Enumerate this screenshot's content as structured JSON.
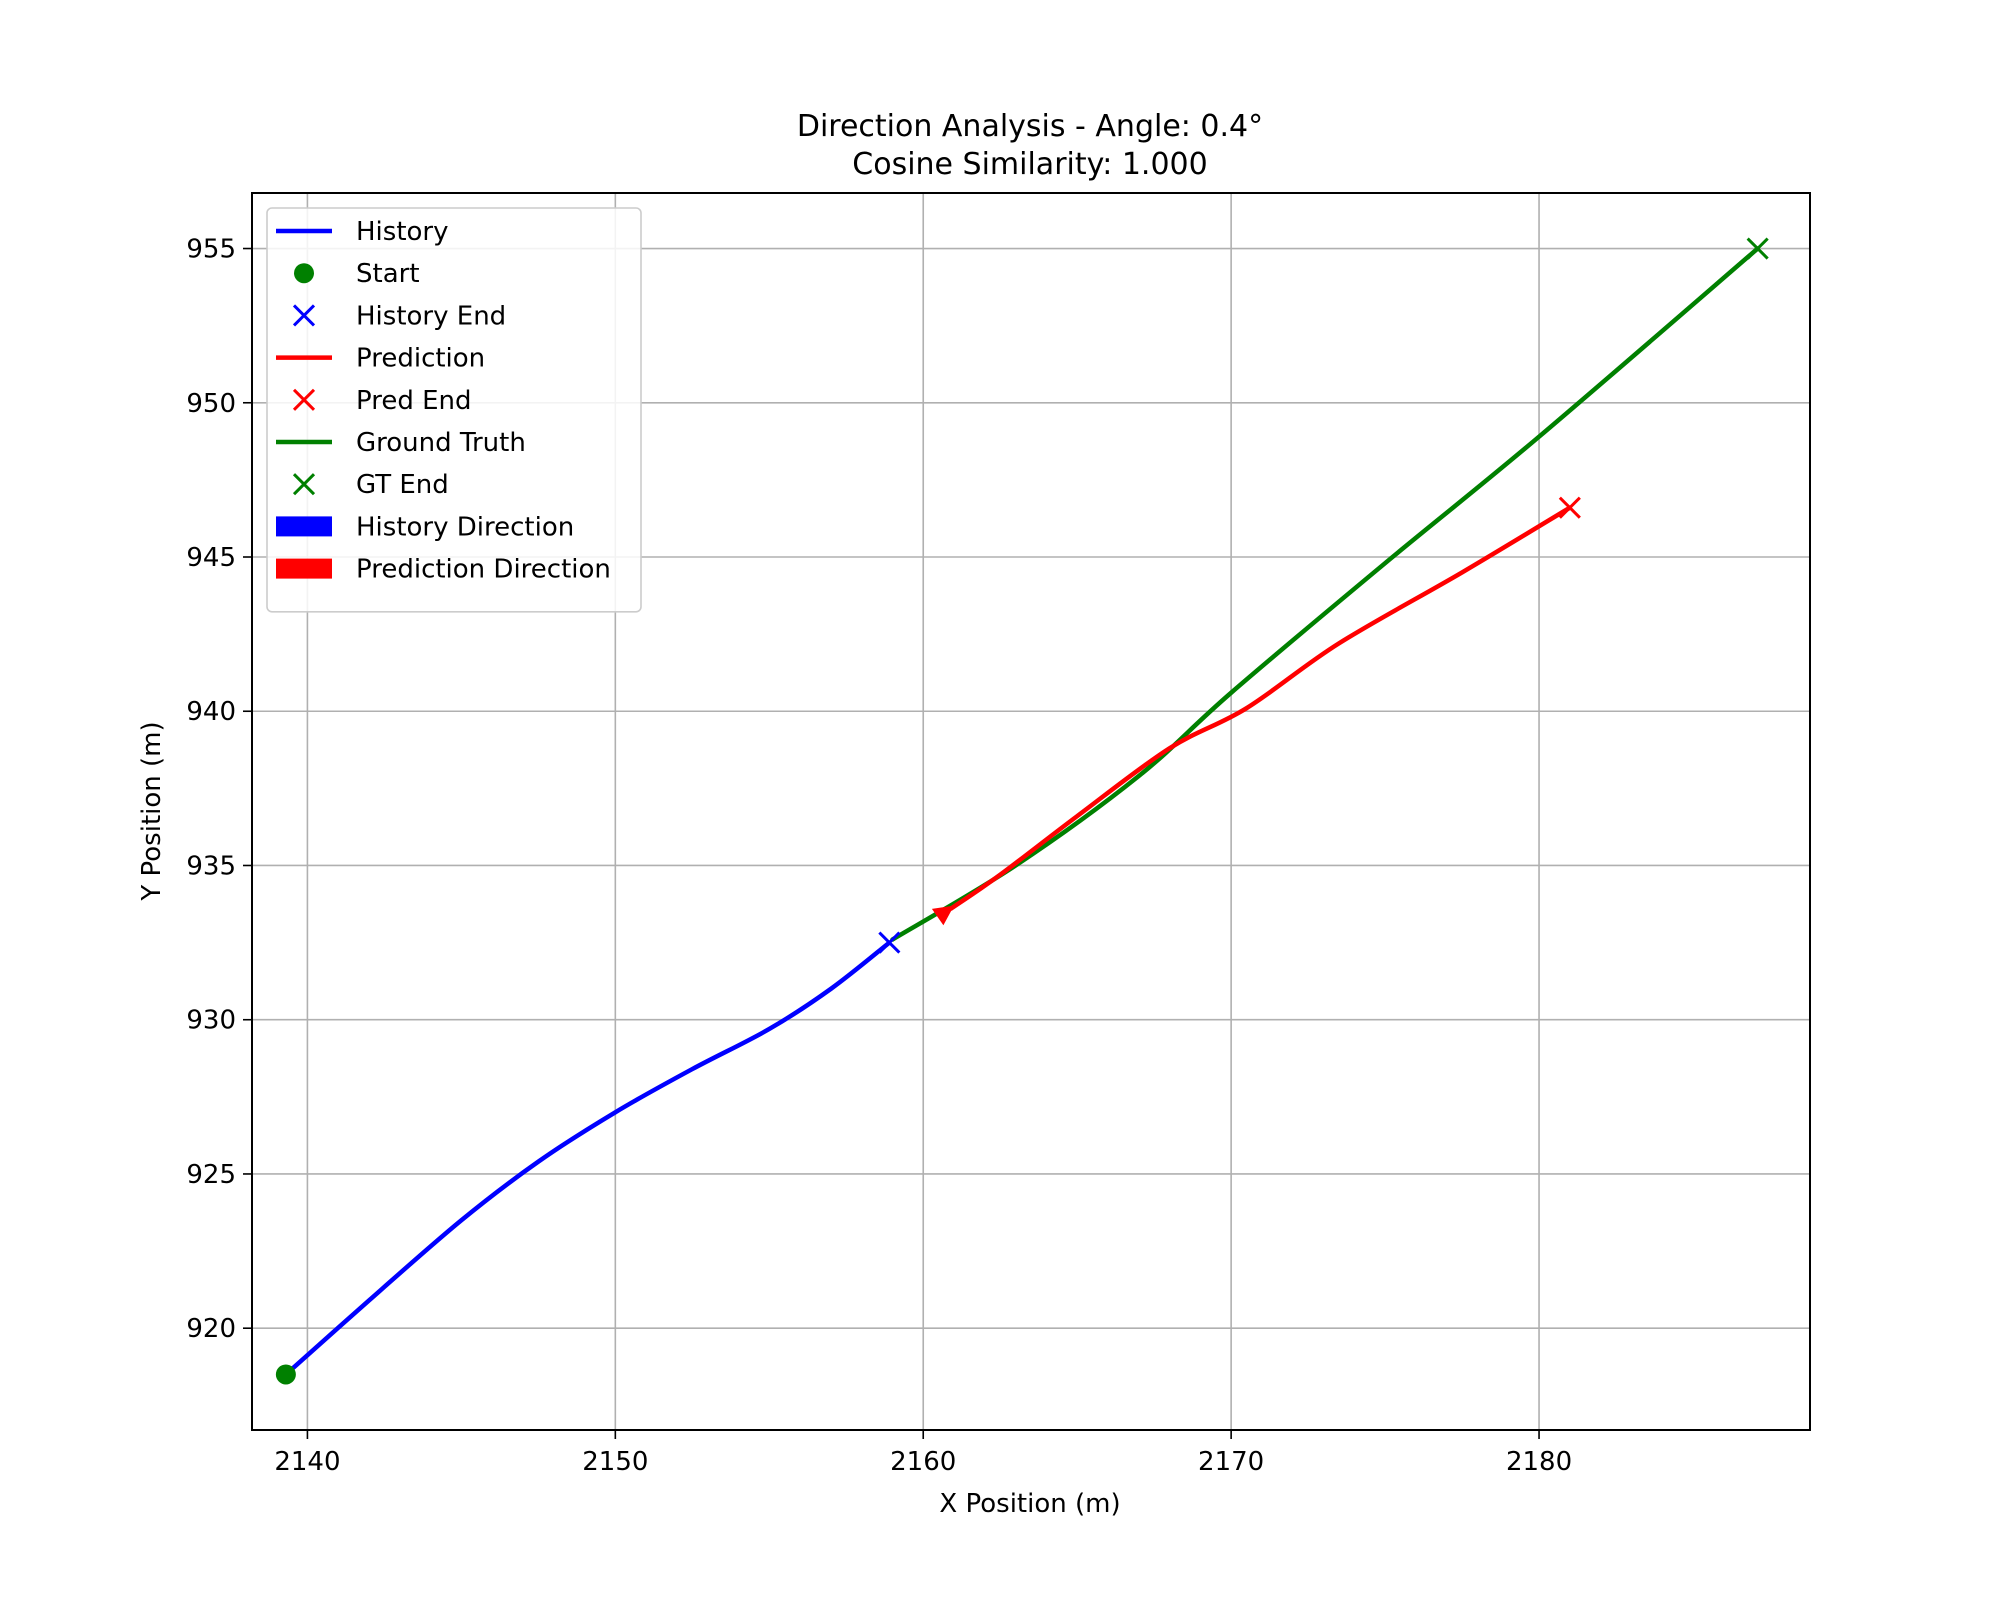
{
  "chart_data": {
    "type": "line",
    "title": "Direction Analysis - Angle: 0.4°",
    "subtitle": "Cosine Similarity: 1.000",
    "xlabel": "X Position (m)",
    "ylabel": "Y Position (m)",
    "xlim": [
      2138.2,
      2188.8
    ],
    "ylim": [
      916.7,
      956.8
    ],
    "xticks": [
      2140,
      2150,
      2160,
      2170,
      2180
    ],
    "yticks": [
      920,
      925,
      930,
      935,
      940,
      945,
      950,
      955
    ],
    "grid": true,
    "legend_position": "top-left",
    "legend": [
      {
        "label": "History",
        "kind": "line",
        "color": "#0000ff"
      },
      {
        "label": "Start",
        "kind": "dot",
        "color": "#008000"
      },
      {
        "label": "History End",
        "kind": "cross",
        "color": "#0000ff"
      },
      {
        "label": "Prediction",
        "kind": "line",
        "color": "#ff0000"
      },
      {
        "label": "Pred End",
        "kind": "cross",
        "color": "#ff0000"
      },
      {
        "label": "Ground Truth",
        "kind": "line",
        "color": "#008000"
      },
      {
        "label": "GT End",
        "kind": "cross",
        "color": "#008000"
      },
      {
        "label": "History Direction",
        "kind": "patch",
        "color": "#0000ff"
      },
      {
        "label": "Prediction Direction",
        "kind": "patch",
        "color": "#ff0000"
      }
    ],
    "series": [
      {
        "name": "History",
        "color": "#0000ff",
        "points": [
          [
            2139.3,
            918.5
          ],
          [
            2142.0,
            920.9
          ],
          [
            2145.0,
            923.5
          ],
          [
            2147.5,
            925.4
          ],
          [
            2150.0,
            927.0
          ],
          [
            2152.5,
            928.4
          ],
          [
            2155.0,
            929.7
          ],
          [
            2157.0,
            931.0
          ],
          [
            2158.9,
            932.5
          ]
        ]
      },
      {
        "name": "Ground Truth",
        "color": "#008000",
        "points": [
          [
            2159.0,
            932.6
          ],
          [
            2163.0,
            935.0
          ],
          [
            2167.0,
            937.9
          ],
          [
            2170.0,
            940.6
          ],
          [
            2175.0,
            944.8
          ],
          [
            2180.0,
            948.9
          ],
          [
            2187.1,
            955.0
          ]
        ]
      },
      {
        "name": "Prediction",
        "color": "#ff0000",
        "points": [
          [
            2160.9,
            933.6
          ],
          [
            2162.5,
            934.7
          ],
          [
            2165.0,
            936.6
          ],
          [
            2168.0,
            938.8
          ],
          [
            2170.5,
            940.1
          ],
          [
            2173.5,
            942.2
          ],
          [
            2177.5,
            944.5
          ],
          [
            2181.0,
            946.6
          ]
        ]
      }
    ],
    "markers": [
      {
        "name": "Start",
        "kind": "dot",
        "color": "#008000",
        "x": 2139.3,
        "y": 918.5
      },
      {
        "name": "History End",
        "kind": "cross",
        "color": "#0000ff",
        "x": 2158.9,
        "y": 932.5
      },
      {
        "name": "Pred End",
        "kind": "cross",
        "color": "#ff0000",
        "x": 2181.0,
        "y": 946.6
      },
      {
        "name": "GT End",
        "kind": "cross",
        "color": "#008000",
        "x": 2187.1,
        "y": 955.0
      }
    ],
    "arrows": [
      {
        "name": "Prediction Direction",
        "color": "#ff0000",
        "from": [
          2160.0,
          933.0
        ],
        "to": [
          2161.0,
          933.7
        ]
      }
    ]
  }
}
